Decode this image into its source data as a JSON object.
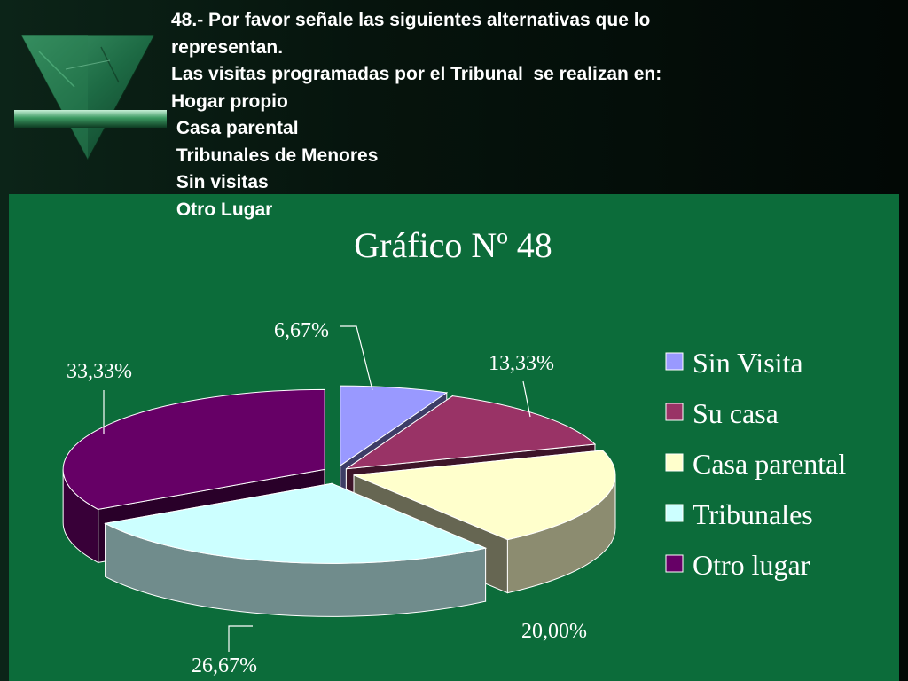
{
  "question": {
    "lines": [
      "48.- Por favor señale las siguientes alternativas que lo",
      "representan.",
      "Las visitas programadas por el Tribunal  se realizan en:",
      "Hogar propio",
      " Casa parental",
      " Tribunales de Menores",
      " Sin visitas",
      " Otro Lugar"
    ]
  },
  "colors": {
    "background": "#06140d",
    "panel": "#0c6c3a",
    "text": "#ffffff"
  },
  "logo": {
    "icon": "inverted-triangle-logo-icon"
  },
  "chart_data": {
    "type": "pie",
    "title": "Gráfico Nº 48",
    "slices": [
      {
        "label": "Sin Visita",
        "value": 6.67,
        "data_label": "6,67%",
        "color": "#9999ff"
      },
      {
        "label": "Su casa",
        "value": 13.33,
        "data_label": "13,33%",
        "color": "#993366"
      },
      {
        "label": "Casa parental",
        "value": 20.0,
        "data_label": "20,00%",
        "color": "#ffffcc"
      },
      {
        "label": "Tribunales",
        "value": 26.67,
        "data_label": "26,67%",
        "color": "#ccffff"
      },
      {
        "label": "Otro lugar",
        "value": 33.33,
        "data_label": "33,33%",
        "color": "#660066"
      }
    ],
    "legend": "right",
    "style": "3d-exploded"
  }
}
